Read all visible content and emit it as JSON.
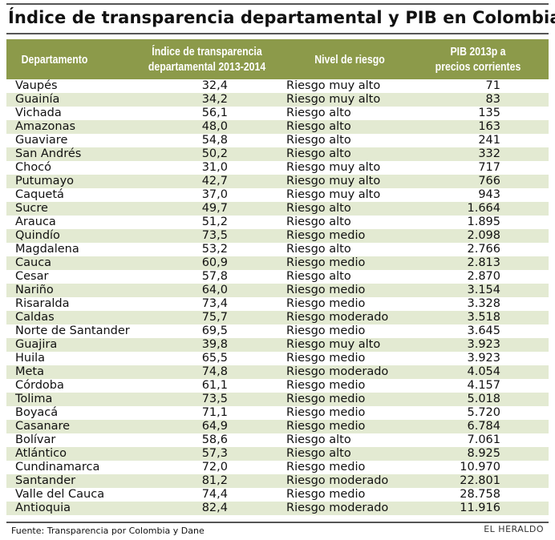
{
  "title": "Índice de transparencia departamental y PIB en Colombia",
  "colors": {
    "header_bg": "#8c9a4a",
    "alt_row_bg": "#e3ead2",
    "rule": "#555555"
  },
  "chart_data": {
    "type": "table",
    "title": "Índice de transparencia departamental y PIB en Colombia",
    "columns": [
      {
        "key": "departamento",
        "lines": [
          "Departamento"
        ]
      },
      {
        "key": "indice",
        "lines": [
          "Índice de transparencia",
          "departamental 2013-2014"
        ]
      },
      {
        "key": "riesgo",
        "lines": [
          "Nivel de riesgo"
        ]
      },
      {
        "key": "pib",
        "lines": [
          "PIB 2013p a",
          "precios corrientes"
        ]
      }
    ],
    "rows": [
      [
        "Vaupés",
        "32,4",
        "Riesgo muy alto",
        "71"
      ],
      [
        "Guainía",
        "34,2",
        "Riesgo muy alto",
        "83"
      ],
      [
        "Vichada",
        "56,1",
        "Riesgo alto",
        "135"
      ],
      [
        "Amazonas",
        "48,0",
        "Riesgo alto",
        "163"
      ],
      [
        "Guaviare",
        "54,8",
        "Riesgo alto",
        "241"
      ],
      [
        "San Andrés",
        "50,2",
        "Riesgo alto",
        "332"
      ],
      [
        "Chocó",
        "31,0",
        "Riesgo muy alto",
        "717"
      ],
      [
        "Putumayo",
        "42,7",
        "Riesgo muy alto",
        "766"
      ],
      [
        "Caquetá",
        "37,0",
        "Riesgo muy alto",
        "943"
      ],
      [
        "Sucre",
        "49,7",
        "Riesgo alto",
        "1.664"
      ],
      [
        "Arauca",
        "51,2",
        "Riesgo alto",
        "1.895"
      ],
      [
        "Quindío",
        "73,5",
        "Riesgo medio",
        "2.098"
      ],
      [
        "Magdalena",
        "53,2",
        "Riesgo alto",
        "2.766"
      ],
      [
        "Cauca",
        "60,9",
        "Riesgo medio",
        "2.813"
      ],
      [
        "Cesar",
        "57,8",
        "Riesgo alto",
        "2.870"
      ],
      [
        "Nariño",
        "64,0",
        "Riesgo medio",
        "3.154"
      ],
      [
        "Risaralda",
        "73,4",
        "Riesgo medio",
        "3.328"
      ],
      [
        "Caldas",
        "75,7",
        "Riesgo moderado",
        "3.518"
      ],
      [
        "Norte de Santander",
        "69,5",
        "Riesgo medio",
        "3.645"
      ],
      [
        "Guajira",
        "39,8",
        "Riesgo muy alto",
        "3.923"
      ],
      [
        "Huila",
        "65,5",
        "Riesgo medio",
        "3.923"
      ],
      [
        "Meta",
        "74,8",
        "Riesgo moderado",
        "4.054"
      ],
      [
        "Córdoba",
        "61,1",
        "Riesgo medio",
        "4.157"
      ],
      [
        "Tolima",
        "73,5",
        "Riesgo medio",
        "5.018"
      ],
      [
        "Boyacá",
        "71,1",
        "Riesgo medio",
        "5.720"
      ],
      [
        "Casanare",
        "64,9",
        "Riesgo medio",
        "6.784"
      ],
      [
        "Bolívar",
        "58,6",
        "Riesgo alto",
        "7.061"
      ],
      [
        "Atlántico",
        "57,3",
        "Riesgo alto",
        "8.925"
      ],
      [
        "Cundinamarca",
        "72,0",
        "Riesgo medio",
        "10.970"
      ],
      [
        "Santander",
        "81,2",
        "Riesgo moderado",
        "22.801"
      ],
      [
        "Valle del Cauca",
        "74,4",
        "Riesgo medio",
        "28.758"
      ],
      [
        "Antioquia",
        "82,4",
        "Riesgo moderado",
        "11.916"
      ]
    ]
  },
  "footer": {
    "source": "Fuente: Transparencia por Colombia y Dane",
    "brand": "EL HERALDO"
  }
}
